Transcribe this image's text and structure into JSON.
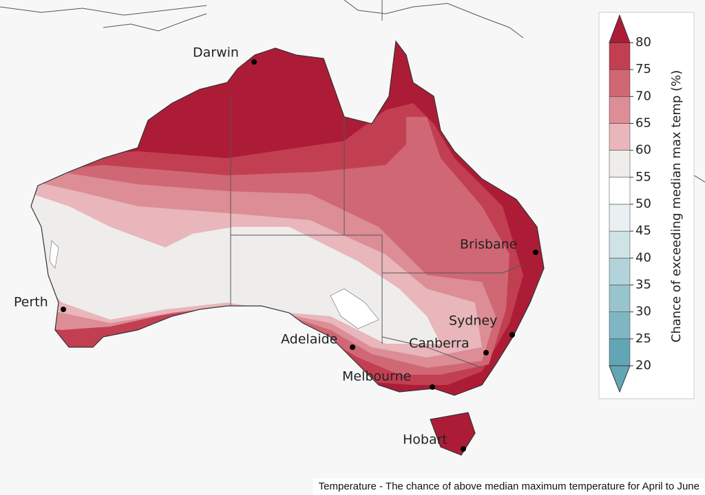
{
  "map": {
    "cities": [
      "Darwin",
      "Brisbane",
      "Perth",
      "Sydney",
      "Adelaide",
      "Canberra",
      "Melbourne",
      "Hobart"
    ]
  },
  "legend": {
    "title": "Chance of exceeding median max temp (%)",
    "ticks": [
      20,
      25,
      30,
      35,
      40,
      45,
      50,
      55,
      60,
      65,
      70,
      75,
      80
    ],
    "colors": [
      "#62a6b6",
      "#7fb6c3",
      "#98c4ce",
      "#b3d3da",
      "#cfe2e6",
      "#e8f0f2",
      "#ffffff",
      "#efedeb",
      "#e8b6bb",
      "#dc8d95",
      "#d06774",
      "#c23f52",
      "#ad1c36"
    ]
  },
  "caption": "Temperature - The chance of above median maximum temperature for April to June"
}
